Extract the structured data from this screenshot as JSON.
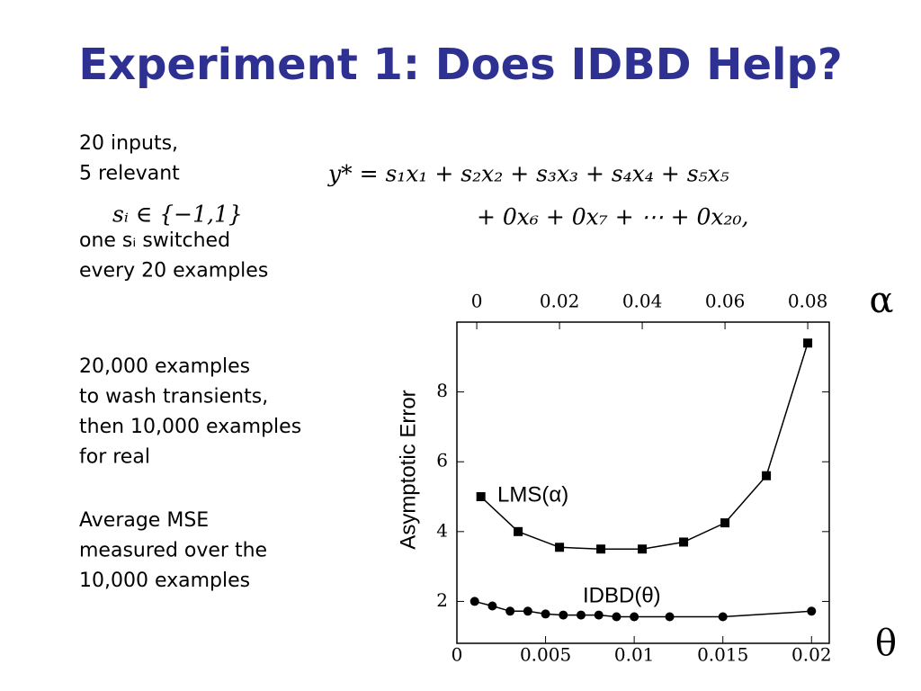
{
  "header": {
    "title": "Experiment 1: Does IDBD Help?"
  },
  "text_blocks": [
    [
      "20 inputs,",
      "5 relevant"
    ],
    [
      "one sᵢ switched",
      "every 20 examples"
    ],
    [
      "20,000 examples",
      "to wash transients,",
      "then 10,000 examples",
      "for real"
    ],
    [
      "Average MSE",
      "measured over the",
      "10,000 examples"
    ]
  ],
  "equations": {
    "set": "sᵢ ∈ {−1,1}",
    "target": [
      "y* =   s₁x₁ + s₂x₂ + s₃x₃ + s₄x₄ + s₅x₅",
      "+ 0x₆ + 0x₇ + ⋯ + 0x₂₀,"
    ]
  },
  "chart_data": {
    "type": "line",
    "y_label": "Asymptotic Error",
    "x_label": "θ",
    "x2_label": "α",
    "xlim": [
      0,
      0.021
    ],
    "xticks": [
      0,
      0.005,
      0.01,
      0.015,
      0.02
    ],
    "x2lim": [
      -0.0048,
      0.0852
    ],
    "x2ticks": [
      0,
      0.02,
      0.04,
      0.06,
      0.08
    ],
    "ylim": [
      0.8,
      10.0
    ],
    "yticks": [
      2,
      4,
      6,
      8
    ],
    "series": [
      {
        "name": "LMS(α)",
        "color": "#000000",
        "marker": "square",
        "axis": "x2",
        "x": [
          0.001,
          0.01,
          0.02,
          0.03,
          0.04,
          0.05,
          0.06,
          0.07,
          0.08
        ],
        "values": [
          5.0,
          4.0,
          3.55,
          3.5,
          3.5,
          3.7,
          4.25,
          5.6,
          9.4
        ]
      },
      {
        "name": "IDBD(θ)",
        "color": "#000000",
        "marker": "circle",
        "axis": "x",
        "x": [
          0.001,
          0.002,
          0.003,
          0.004,
          0.005,
          0.006,
          0.007,
          0.008,
          0.009,
          0.01,
          0.012,
          0.015,
          0.02
        ],
        "values": [
          2.0,
          1.87,
          1.72,
          1.72,
          1.64,
          1.61,
          1.61,
          1.61,
          1.56,
          1.56,
          1.56,
          1.56,
          1.72
        ]
      }
    ]
  }
}
